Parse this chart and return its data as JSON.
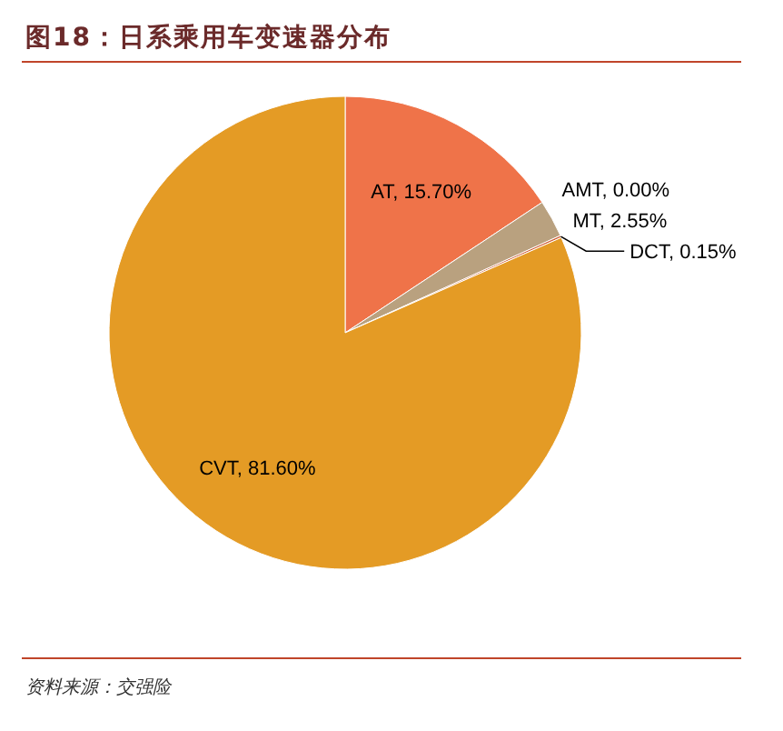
{
  "chart_data": {
    "type": "pie",
    "title": "图18：日系乘用车变速器分布",
    "categories": [
      "AT",
      "AMT",
      "MT",
      "DCT",
      "CVT"
    ],
    "values": [
      15.7,
      0.0,
      2.55,
      0.15,
      81.6
    ],
    "value_labels": [
      ", 15.70%",
      ", 0.00%",
      ", 2.55%",
      ", 0.15%",
      ", 81.60%"
    ],
    "colors": [
      "#ef7349",
      "#7f7f7f",
      "#b9a17f",
      "#d0603a",
      "#e49b25"
    ],
    "annotations": [
      "资料来源：交强险"
    ]
  }
}
